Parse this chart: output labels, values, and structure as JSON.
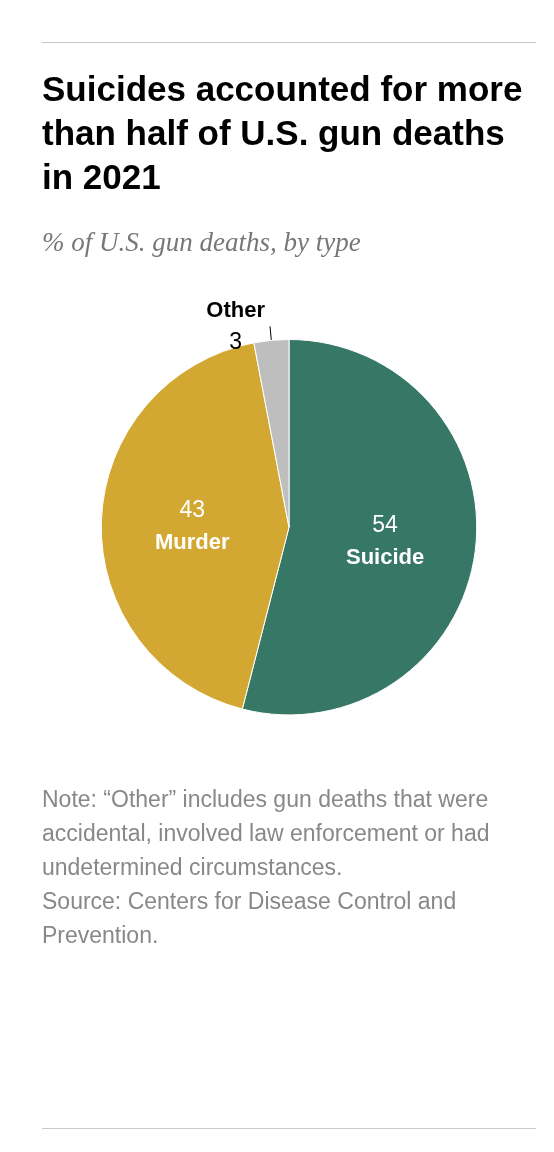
{
  "chart_data": {
    "type": "pie",
    "title": "Suicides accounted for more than half of U.S. gun deaths in 2021",
    "subtitle": "% of U.S. gun deaths, by type",
    "categories": [
      "Suicide",
      "Murder",
      "Other"
    ],
    "values": [
      54,
      43,
      3
    ],
    "colors": [
      "#367766",
      "#d3a832",
      "#bebebe"
    ],
    "data_labels": true,
    "annotations": [
      "Note: “Other” includes gun deaths that were accidental, involved law enforcement or had undetermined circumstances.",
      "Source: Centers for Disease Control and Prevention."
    ]
  }
}
